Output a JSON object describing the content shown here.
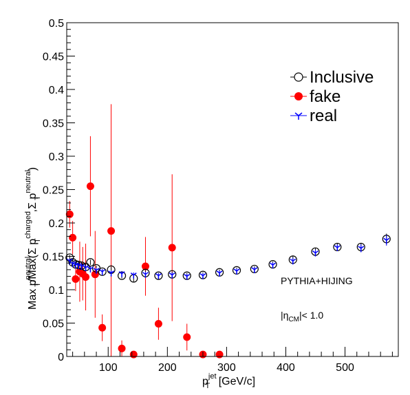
{
  "chart_data": {
    "type": "scatter",
    "title": "",
    "xlabel": {
      "base": "p",
      "sub": "T",
      "sup": "jet",
      "suffix": " [GeV/c]"
    },
    "ylabel": {
      "p1": "Max p",
      "p1_sup": "neutral",
      "p1_sub": "T",
      "p2": "/Max(Σ p",
      "p2_sup": "charged",
      "p2_sub": "T",
      "p3": ",Σ p",
      "p3_sup": "neutral",
      "p3_sub": "T",
      "p4": ")"
    },
    "xlim": [
      30,
      590
    ],
    "ylim": [
      0,
      0.5
    ],
    "x_ticks": [
      100,
      200,
      300,
      400,
      500
    ],
    "x_tick_labels": [
      "100",
      "200",
      "300",
      "400",
      "500"
    ],
    "y_ticks": [
      0,
      0.05,
      0.1,
      0.15,
      0.2,
      0.25,
      0.3,
      0.35,
      0.4,
      0.45,
      0.5
    ],
    "y_tick_labels": [
      "0",
      "0.05",
      "0.1",
      "0.15",
      "0.2",
      "0.25",
      "0.3",
      "0.35",
      "0.4",
      "0.45",
      "0.5"
    ],
    "grid": false,
    "legend": {
      "position": "top-right",
      "entries": [
        {
          "label": "Inclusive",
          "series": "inclusive"
        },
        {
          "label": "fake",
          "series": "fake"
        },
        {
          "label": "real",
          "series": "real"
        }
      ]
    },
    "annotations": {
      "generator": "PYTHIA+HIJING",
      "eta_base": "|η",
      "eta_sub": "CM",
      "eta_rest": "|< 1.0"
    },
    "series": [
      {
        "name": "Inclusive",
        "key": "inclusive",
        "marker": "open-circle",
        "color": "#000000",
        "points": [
          {
            "x": 35,
            "y": 0.148,
            "err": 0.004
          },
          {
            "x": 40,
            "y": 0.141,
            "err": 0.004
          },
          {
            "x": 45,
            "y": 0.138,
            "err": 0.004
          },
          {
            "x": 50,
            "y": 0.137,
            "err": 0.004
          },
          {
            "x": 55,
            "y": 0.136,
            "err": 0.004
          },
          {
            "x": 62,
            "y": 0.134,
            "err": 0.004
          },
          {
            "x": 70,
            "y": 0.141,
            "err": 0.004
          },
          {
            "x": 80,
            "y": 0.132,
            "err": 0.004
          },
          {
            "x": 90,
            "y": 0.127,
            "err": 0.004
          },
          {
            "x": 105,
            "y": 0.13,
            "err": 0.004
          },
          {
            "x": 123,
            "y": 0.121,
            "err": 0.004
          },
          {
            "x": 143,
            "y": 0.117,
            "err": 0.005
          },
          {
            "x": 163,
            "y": 0.125,
            "err": 0.004
          },
          {
            "x": 185,
            "y": 0.121,
            "err": 0.004
          },
          {
            "x": 208,
            "y": 0.123,
            "err": 0.004
          },
          {
            "x": 233,
            "y": 0.121,
            "err": 0.004
          },
          {
            "x": 260,
            "y": 0.122,
            "err": 0.004
          },
          {
            "x": 288,
            "y": 0.126,
            "err": 0.004
          },
          {
            "x": 317,
            "y": 0.129,
            "err": 0.004
          },
          {
            "x": 347,
            "y": 0.131,
            "err": 0.004
          },
          {
            "x": 378,
            "y": 0.138,
            "err": 0.004
          },
          {
            "x": 412,
            "y": 0.145,
            "err": 0.005
          },
          {
            "x": 450,
            "y": 0.157,
            "err": 0.005
          },
          {
            "x": 487,
            "y": 0.164,
            "err": 0.005
          },
          {
            "x": 527,
            "y": 0.164,
            "err": 0.006
          },
          {
            "x": 570,
            "y": 0.176,
            "err": 0.008
          }
        ]
      },
      {
        "name": "fake",
        "key": "fake",
        "marker": "filled-circle",
        "color": "#ff0000",
        "points": [
          {
            "x": 35,
            "y": 0.213,
            "err": 0.02
          },
          {
            "x": 40,
            "y": 0.178,
            "err": 0.025
          },
          {
            "x": 45,
            "y": 0.116,
            "err": 0.018
          },
          {
            "x": 52,
            "y": 0.127,
            "err": 0.045
          },
          {
            "x": 57,
            "y": 0.124,
            "err": 0.04
          },
          {
            "x": 62,
            "y": 0.119,
            "err": 0.05
          },
          {
            "x": 70,
            "y": 0.255,
            "err": 0.075
          },
          {
            "x": 78,
            "y": 0.123,
            "err": 0.065
          },
          {
            "x": 90,
            "y": 0.043,
            "err": 0.02
          },
          {
            "x": 105,
            "y": 0.188,
            "err": 0.19
          },
          {
            "x": 123,
            "y": 0.012,
            "err": 0.012
          },
          {
            "x": 143,
            "y": 0.003,
            "err": 0.0
          },
          {
            "x": 163,
            "y": 0.135,
            "err": 0.044
          },
          {
            "x": 185,
            "y": 0.049,
            "err": 0.024
          },
          {
            "x": 208,
            "y": 0.163,
            "err": 0.11
          },
          {
            "x": 233,
            "y": 0.029,
            "err": 0.02
          },
          {
            "x": 260,
            "y": 0.003,
            "err": 0.0
          },
          {
            "x": 288,
            "y": 0.003,
            "err": 0.0
          }
        ]
      },
      {
        "name": "real",
        "key": "real",
        "marker": "tri-down-star",
        "color": "#0000ff",
        "points": [
          {
            "x": 35,
            "y": 0.143,
            "err": 0.004
          },
          {
            "x": 40,
            "y": 0.139,
            "err": 0.004
          },
          {
            "x": 45,
            "y": 0.137,
            "err": 0.004
          },
          {
            "x": 50,
            "y": 0.136,
            "err": 0.004
          },
          {
            "x": 55,
            "y": 0.135,
            "err": 0.004
          },
          {
            "x": 62,
            "y": 0.133,
            "err": 0.004
          },
          {
            "x": 70,
            "y": 0.131,
            "err": 0.004
          },
          {
            "x": 80,
            "y": 0.129,
            "err": 0.004
          },
          {
            "x": 90,
            "y": 0.127,
            "err": 0.004
          },
          {
            "x": 105,
            "y": 0.125,
            "err": 0.004
          },
          {
            "x": 123,
            "y": 0.124,
            "err": 0.004
          },
          {
            "x": 143,
            "y": 0.122,
            "err": 0.004
          },
          {
            "x": 163,
            "y": 0.123,
            "err": 0.004
          },
          {
            "x": 185,
            "y": 0.121,
            "err": 0.004
          },
          {
            "x": 208,
            "y": 0.122,
            "err": 0.004
          },
          {
            "x": 233,
            "y": 0.12,
            "err": 0.004
          },
          {
            "x": 260,
            "y": 0.121,
            "err": 0.004
          },
          {
            "x": 288,
            "y": 0.125,
            "err": 0.004
          },
          {
            "x": 317,
            "y": 0.128,
            "err": 0.004
          },
          {
            "x": 347,
            "y": 0.13,
            "err": 0.004
          },
          {
            "x": 378,
            "y": 0.137,
            "err": 0.004
          },
          {
            "x": 412,
            "y": 0.143,
            "err": 0.005
          },
          {
            "x": 450,
            "y": 0.155,
            "err": 0.005
          },
          {
            "x": 487,
            "y": 0.163,
            "err": 0.005
          },
          {
            "x": 527,
            "y": 0.162,
            "err": 0.006
          },
          {
            "x": 570,
            "y": 0.174,
            "err": 0.008
          }
        ]
      }
    ]
  }
}
